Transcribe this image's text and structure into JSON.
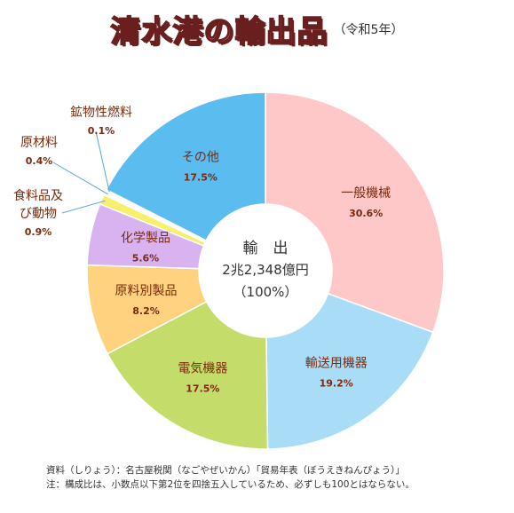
{
  "title": "清水港の輸出品",
  "subtitle": "（令和5年）",
  "chart_data": {
    "type": "pie",
    "style": "donut",
    "center_label": {
      "line1": "輸　出",
      "line2": "2兆2,348億円",
      "line3": "（100%）"
    },
    "slices": [
      {
        "name": "一般機械",
        "value": 30.6,
        "value_label": "30.6%",
        "color": "#ffc8c8",
        "label_color": "#7a2a0e"
      },
      {
        "name": "輸送用機器",
        "value": 19.2,
        "value_label": "19.2%",
        "color": "#a9ddf7",
        "label_color": "#7a2a0e"
      },
      {
        "name": "電気機器",
        "value": 17.5,
        "value_label": "17.5%",
        "color": "#c3dc6a",
        "label_color": "#7a2a0e"
      },
      {
        "name": "原料別製品",
        "value": 8.2,
        "value_label": "8.2%",
        "color": "#ffd27f",
        "label_color": "#7a2a0e"
      },
      {
        "name": "化学製品",
        "value": 5.6,
        "value_label": "5.6%",
        "color": "#d9b3ef",
        "label_color": "#7a2a0e"
      },
      {
        "name": "食料品及び動物",
        "value": 0.9,
        "value_label": "0.9%",
        "color": "#f8ef6a",
        "label_color": "#7a2a0e"
      },
      {
        "name": "原材料",
        "value": 0.4,
        "value_label": "0.4%",
        "color": "#ffffff",
        "label_color": "#7a2a0e"
      },
      {
        "name": "鉱物性燃料",
        "value": 0.1,
        "value_label": "0.1%",
        "color": "#ffd4a0",
        "label_color": "#7a2a0e"
      },
      {
        "name": "その他",
        "value": 17.5,
        "value_label": "17.5%",
        "color": "#5bbcf0",
        "label_color": "#7a2a0e"
      }
    ],
    "outside_labels": [
      {
        "slice": "鉱物性燃料",
        "lines": [
          "鉱物性燃料",
          "0.1%"
        ]
      },
      {
        "slice": "原材料",
        "lines": [
          "原材料",
          "0.4%"
        ]
      },
      {
        "slice": "食料品及び動物",
        "lines": [
          "食料品及",
          "び動物",
          "0.9%"
        ]
      }
    ]
  },
  "footnotes": {
    "source": "資料（しりょう）：名古屋税関（なごやぜいかん）「貿易年表（ぼうえきねんぴょう）」",
    "note": "注：構成比は、小数点以下第2位を四捨五入しているため、必ずしも100とはならない。"
  }
}
